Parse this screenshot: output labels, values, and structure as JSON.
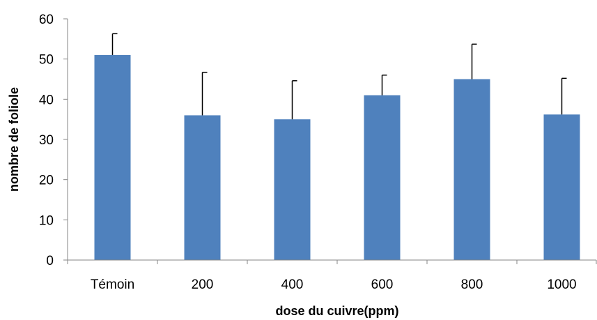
{
  "chart_data": {
    "type": "bar",
    "categories": [
      "Témoin",
      "200",
      "400",
      "600",
      "800",
      "1000"
    ],
    "values": [
      51,
      36,
      35,
      41,
      45,
      36.2
    ],
    "error_plus": [
      5.3,
      10.7,
      9.6,
      5.0,
      8.7,
      9.0
    ],
    "xlabel": "dose du cuivre(ppm)",
    "ylabel": "nombre de foliole",
    "ylim": [
      0,
      60
    ],
    "yticks": [
      "0",
      "10",
      "20",
      "30",
      "40",
      "50",
      "60"
    ],
    "grid": false,
    "legend": "none",
    "bar_color": "#4F81BD",
    "error_bar_color": "#000000"
  }
}
